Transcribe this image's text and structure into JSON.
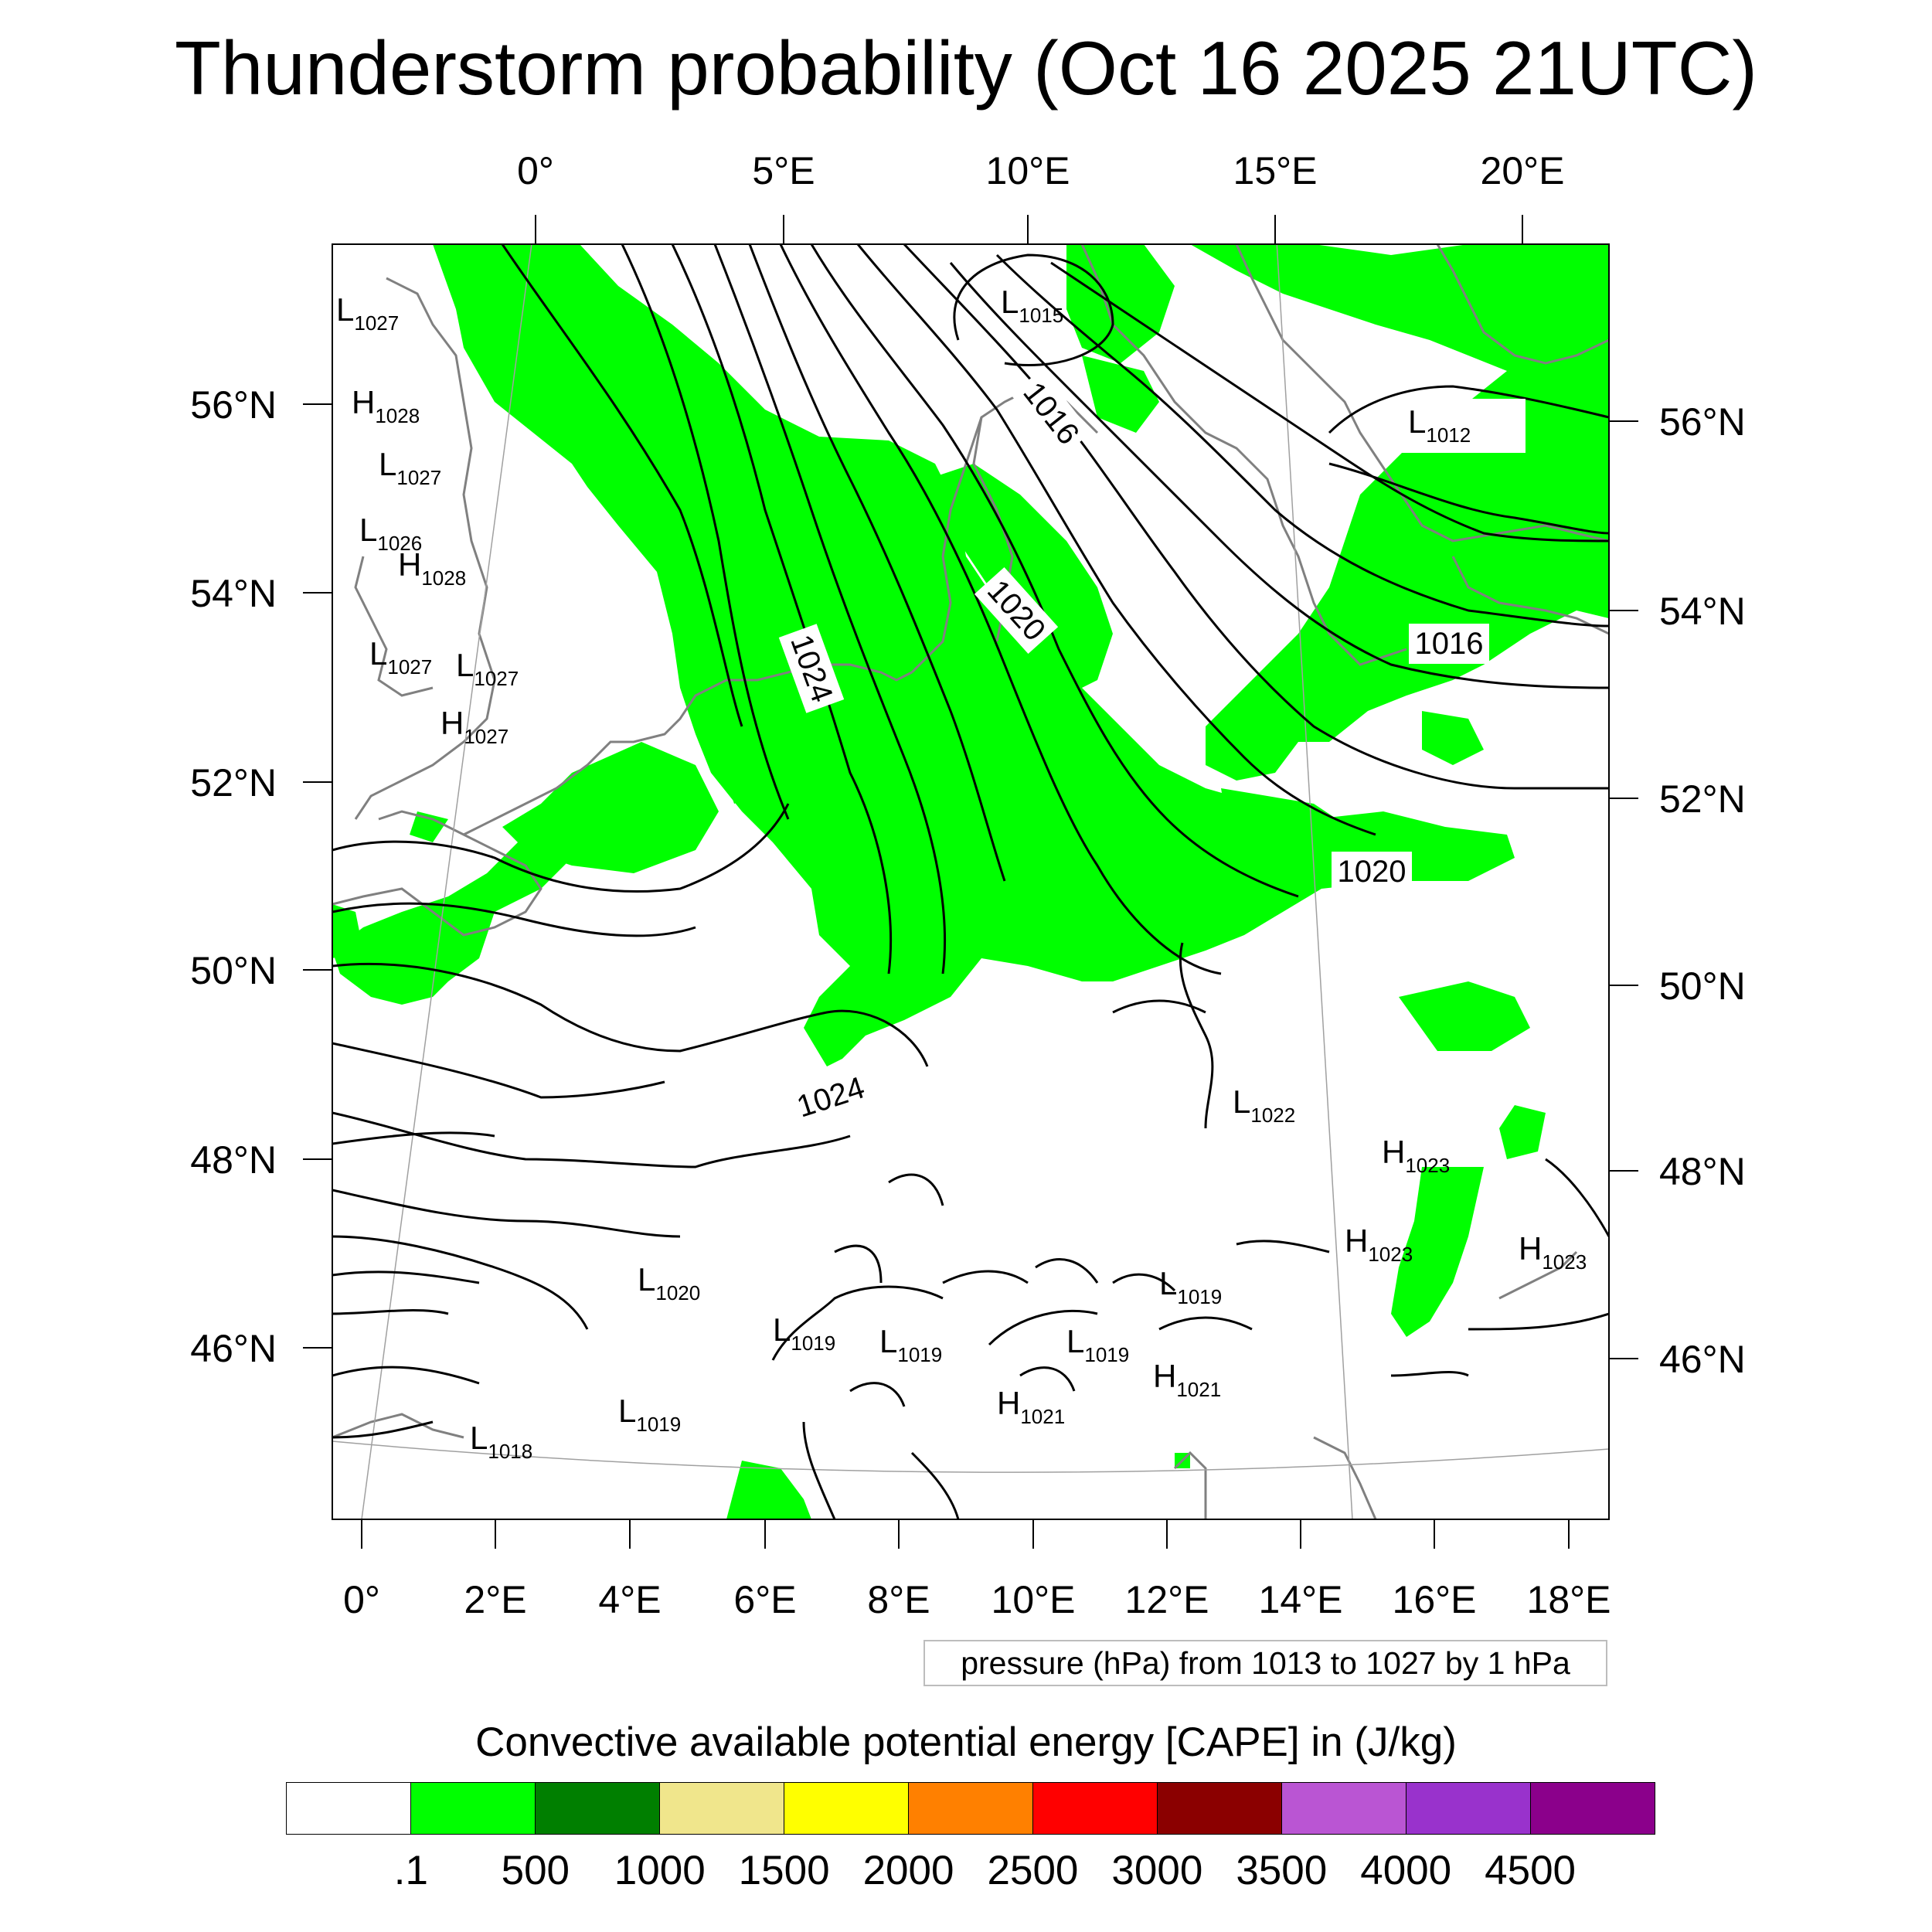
{
  "title": "Thunderstorm probability (Oct 16 2025 21UTC)",
  "top_lon_ticks": [
    "0°",
    "5°E",
    "10°E",
    "15°E",
    "20°E"
  ],
  "bottom_lon_ticks": [
    "0°",
    "2°E",
    "4°E",
    "6°E",
    "8°E",
    "10°E",
    "12°E",
    "14°E",
    "16°E",
    "18°E"
  ],
  "left_lat_ticks": [
    "56°N",
    "54°N",
    "52°N",
    "50°N",
    "48°N",
    "46°N"
  ],
  "right_lat_ticks": [
    "56°N",
    "54°N",
    "52°N",
    "50°N",
    "48°N",
    "46°N"
  ],
  "contour_labels": [
    {
      "text": "1016",
      "rotation": 52
    },
    {
      "text": "1020",
      "rotation": 48
    },
    {
      "text": "1024",
      "rotation": 70
    },
    {
      "text": "1016",
      "rotation": 0
    },
    {
      "text": "1020",
      "rotation": 0
    },
    {
      "text": "1024",
      "rotation": -18
    }
  ],
  "pressure_centers": [
    {
      "type": "L",
      "value": "1027"
    },
    {
      "type": "H",
      "value": "1028"
    },
    {
      "type": "L",
      "value": "1027"
    },
    {
      "type": "L",
      "value": "1026"
    },
    {
      "type": "H",
      "value": "1028"
    },
    {
      "type": "L",
      "value": "1027"
    },
    {
      "type": "L",
      "value": "1027"
    },
    {
      "type": "H",
      "value": "1027"
    },
    {
      "type": "L",
      "value": "1015"
    },
    {
      "type": "L",
      "value": "1012"
    },
    {
      "type": "L",
      "value": "1022"
    },
    {
      "type": "H",
      "value": "1023"
    },
    {
      "type": "H",
      "value": "1023"
    },
    {
      "type": "H",
      "value": "1023"
    },
    {
      "type": "L",
      "value": "1020"
    },
    {
      "type": "L",
      "value": "1019"
    },
    {
      "type": "L",
      "value": "1019"
    },
    {
      "type": "L",
      "value": "1019"
    },
    {
      "type": "L",
      "value": "1019"
    },
    {
      "type": "H",
      "value": "1021"
    },
    {
      "type": "H",
      "value": "1021"
    },
    {
      "type": "L",
      "value": "1019"
    },
    {
      "type": "L",
      "value": "1018"
    }
  ],
  "pressure_info": "pressure (hPa) from 1013 to 1027 by 1 hPa",
  "colorbar": {
    "title": "Convective available potential energy [CAPE] in (J/kg)",
    "colors": [
      "#ffffff",
      "#00ff00",
      "#007f00",
      "#f0e68c",
      "#ffff00",
      "#ff8000",
      "#ff0000",
      "#8b0000",
      "#ba55d3",
      "#9932cc",
      "#8b008b"
    ],
    "labels": [
      ".1",
      "500",
      "1000",
      "1500",
      "2000",
      "2500",
      "3000",
      "3500",
      "4000",
      "4500"
    ]
  },
  "colors": {
    "cape_fill": "#00ff00",
    "coastline": "#808080",
    "isobar": "#000000"
  }
}
